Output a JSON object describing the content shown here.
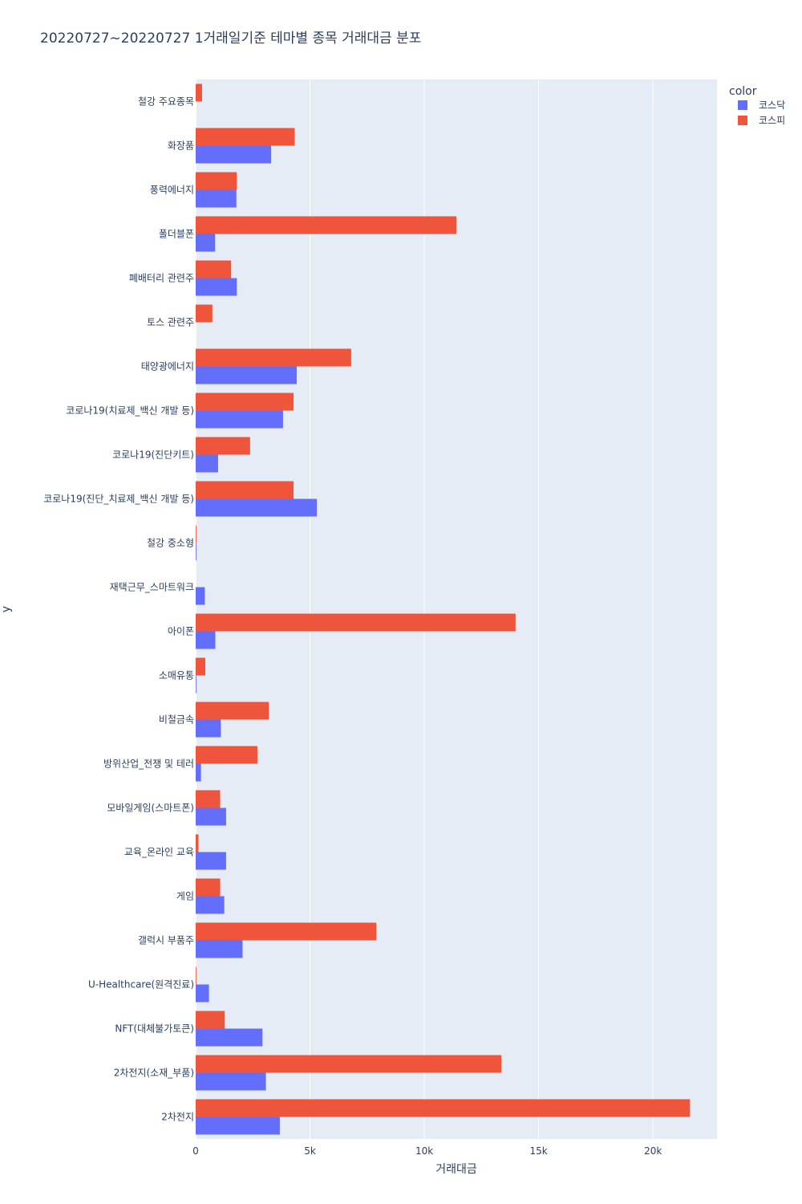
{
  "chart_data": {
    "type": "bar",
    "orientation": "horizontal",
    "barmode": "group",
    "title": "20220727~20220727 1거래일기준 테마별 종목 거래대금 분포",
    "xlabel": "거래대금",
    "ylabel": "y",
    "xlim": [
      0,
      22800
    ],
    "x_ticks": [
      {
        "value": 0,
        "label": "0"
      },
      {
        "value": 5000,
        "label": "5k"
      },
      {
        "value": 10000,
        "label": "10k"
      },
      {
        "value": 15000,
        "label": "15k"
      },
      {
        "value": 20000,
        "label": "20k"
      }
    ],
    "grid": true,
    "legend": {
      "title": "color",
      "placement": "top-right"
    },
    "categories": [
      "철강 주요종목",
      "화장품",
      "풍력에너지",
      "폴더블폰",
      "폐배터리 관련주",
      "토스 관련주",
      "태양광에너지",
      "코로나19(치료제_백신 개발 등)",
      "코로나19(진단키트)",
      "코로나19(진단_치료제_백신 개발 등)",
      "철강 중소형",
      "재택근무_스마트워크",
      "아이폰",
      "소매유통",
      "비철금속",
      "방위산업_전쟁 및 테러",
      "모바일게임(스마트폰)",
      "교육_온라인 교육",
      "게임",
      "갤럭시 부품주",
      "U-Healthcare(원격진료)",
      "NFT(대체불가토큰)",
      "2차전지(소재_부품)",
      "2차전지"
    ],
    "series": [
      {
        "name": "코스닥",
        "color": "#636efa",
        "values": [
          0,
          3300,
          1780,
          850,
          1800,
          0,
          4420,
          3820,
          980,
          5300,
          30,
          400,
          860,
          30,
          1100,
          230,
          1330,
          1330,
          1250,
          2050,
          580,
          2920,
          3070,
          3680
        ]
      },
      {
        "name": "코스피",
        "color": "#ef553b",
        "values": [
          280,
          4330,
          1800,
          11400,
          1550,
          730,
          6800,
          4280,
          2380,
          4280,
          30,
          0,
          13990,
          420,
          3200,
          2700,
          1070,
          120,
          1070,
          7900,
          30,
          1270,
          13370,
          21620
        ]
      }
    ]
  }
}
